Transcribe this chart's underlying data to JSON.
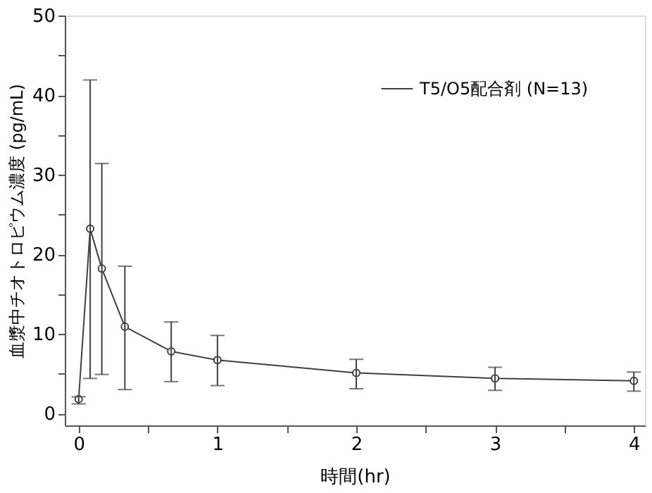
{
  "chart_data": {
    "type": "line",
    "xlabel": "時間(hr)",
    "ylabel": "血漿中チオトロピウム濃度 (pg/mL)",
    "x": [
      0,
      0.083,
      0.167,
      0.333,
      0.667,
      1,
      2,
      3,
      4
    ],
    "series": [
      {
        "name": "T5/O5配合剤 (N=13)",
        "color": "#404040",
        "values": [
          1.8,
          23.2,
          18.2,
          10.9,
          7.8,
          6.7,
          5.1,
          4.4,
          4.1
        ],
        "errors": [
          [
            1.2,
            2.1
          ],
          [
            4.4,
            41.9
          ],
          [
            4.9,
            31.4
          ],
          [
            3.0,
            18.5
          ],
          [
            4.0,
            11.5
          ],
          [
            3.5,
            9.8
          ],
          [
            3.1,
            6.8
          ],
          [
            2.9,
            5.8
          ],
          [
            2.8,
            5.2
          ]
        ]
      }
    ],
    "xlim": [
      -0.1,
      4.08
    ],
    "ylim": [
      -1.5,
      50
    ],
    "xticks": [
      0,
      {
        "value": 0.5,
        "label": null
      },
      1,
      {
        "value": 1.5,
        "label": null
      },
      2,
      {
        "value": 2.5,
        "label": null
      },
      3,
      {
        "value": 3.5,
        "label": null
      },
      4
    ],
    "yticks": [
      0,
      {
        "value": 5,
        "label": null
      },
      10,
      {
        "value": 15,
        "label": null
      },
      20,
      {
        "value": 25,
        "label": null
      },
      30,
      {
        "value": 35,
        "label": null
      },
      40,
      {
        "value": 45,
        "label": null
      },
      50
    ],
    "marker": "circle",
    "line_style": "solid",
    "grid": false,
    "legend": "top right"
  }
}
